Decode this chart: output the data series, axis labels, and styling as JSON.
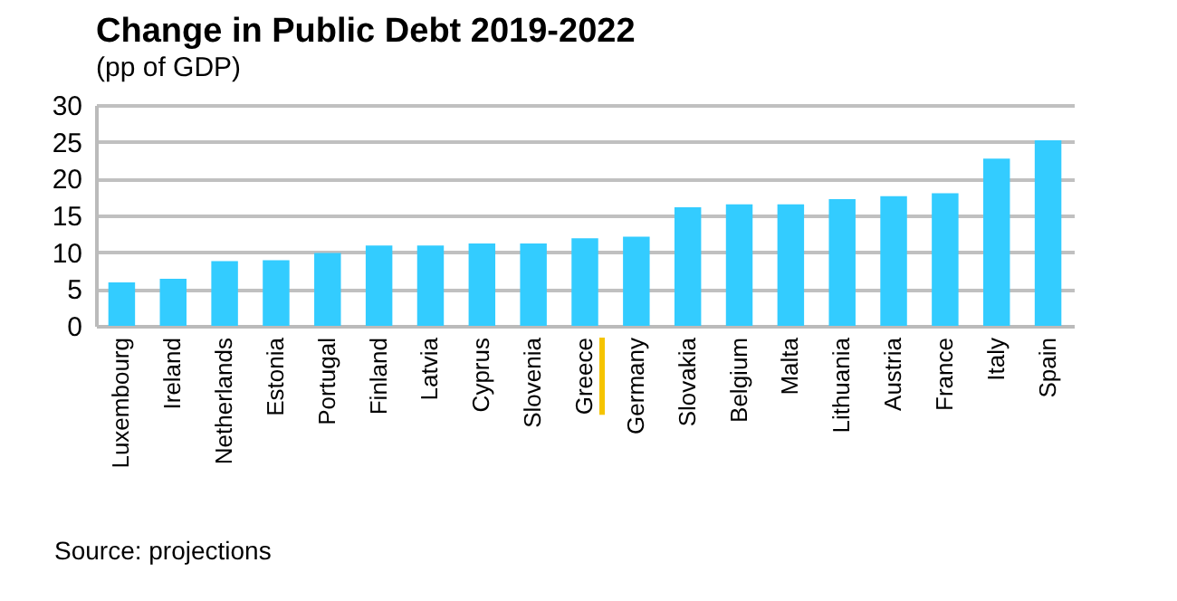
{
  "chart_data": {
    "type": "bar",
    "title": "Change in Public Debt 2019-2022",
    "subtitle": "(pp of GDP)",
    "categories": [
      "Luxembourg",
      "Ireland",
      "Netherlands",
      "Estonia",
      "Portugal",
      "Finland",
      "Latvia",
      "Cyprus",
      "Slovenia",
      "Greece",
      "Germany",
      "Slovakia",
      "Belgium",
      "Malta",
      "Lithuania",
      "Austria",
      "France",
      "Italy",
      "Spain"
    ],
    "values": [
      5.9,
      6.4,
      8.8,
      8.9,
      9.9,
      10.9,
      10.9,
      11.2,
      11.2,
      11.9,
      12.1,
      16.1,
      16.5,
      16.5,
      17.2,
      17.6,
      18.0,
      22.7,
      25.2
    ],
    "color": "#33ccff",
    "ylim": [
      0,
      30
    ],
    "yticks": [
      0,
      5,
      10,
      15,
      20,
      25,
      30
    ],
    "grid": "y",
    "annotations": [
      "Source: projections"
    ]
  }
}
